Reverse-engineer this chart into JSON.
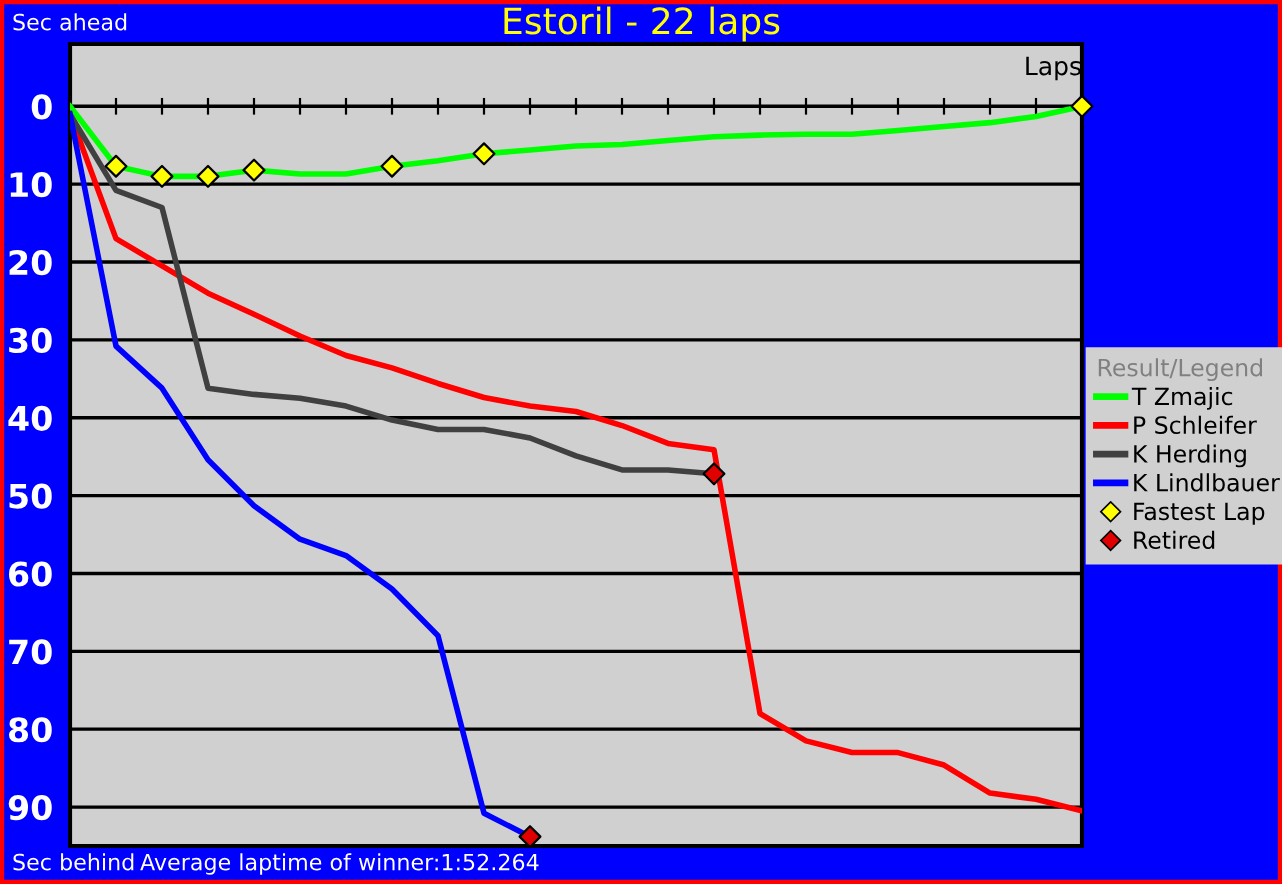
{
  "chart_data": {
    "type": "line",
    "title": "Estoril - 22 laps",
    "xlabel": "Laps",
    "legend_title": "Result/Legend",
    "annotations": [
      "Sec ahead",
      "Sec behind",
      "Average laptime of winner:1:52.264"
    ],
    "categories": [
      null,
      null,
      null,
      null,
      null,
      null,
      null,
      null,
      null,
      null,
      null,
      null,
      null,
      null,
      null,
      null,
      null,
      null,
      null,
      null,
      null,
      null,
      null
    ],
    "ylim": [
      95,
      -8
    ],
    "yticks": [
      0,
      10,
      20,
      30,
      40,
      50,
      60,
      70,
      80,
      90
    ],
    "grid": "y",
    "legend": "right",
    "marker": "none",
    "line_style": "solid",
    "series": [
      {
        "name": "T Zmajic",
        "color": "#00ff00",
        "values": [
          0,
          7.7,
          9,
          9,
          8.2,
          8.7,
          8.7,
          7.7,
          7,
          6.1,
          5.6,
          5.1,
          4.9,
          4.4,
          3.9,
          3.7,
          3.6,
          3.6,
          3.1,
          2.6,
          2.1,
          1.3,
          0
        ]
      },
      {
        "name": "P Schleifer",
        "color": "#ff0000",
        "values": [
          1,
          17,
          20.5,
          24,
          26.7,
          29.5,
          32,
          33.6,
          35.6,
          37.4,
          38.5,
          39.2,
          41,
          43.3,
          44.1,
          78,
          81.5,
          83,
          83,
          84.6,
          88.2,
          89,
          90.5
        ]
      },
      {
        "name": "K Herding",
        "color": "#404040",
        "values": [
          1,
          10.8,
          13,
          36.2,
          37,
          37.5,
          38.5,
          40.3,
          41.5,
          41.5,
          42.6,
          44.9,
          46.7,
          46.7,
          47.2,
          null,
          null,
          null,
          null,
          null,
          null,
          null,
          null
        ]
      },
      {
        "name": "K Lindlbauer",
        "color": "#0000ff",
        "values": [
          1,
          30.8,
          36.2,
          45.4,
          51.3,
          55.6,
          57.7,
          62,
          68,
          90.8,
          93.8,
          null,
          null,
          null,
          null,
          null,
          null,
          null,
          null,
          null,
          null,
          null,
          null
        ]
      },
      {
        "name": "Fastest Lap",
        "type": "scatter",
        "marker": "diamond",
        "color": "#ffff00",
        "values": [
          null,
          7.7,
          9,
          9,
          8.2,
          null,
          null,
          7.7,
          null,
          6.1,
          null,
          null,
          null,
          null,
          null,
          null,
          null,
          null,
          null,
          null,
          null,
          null,
          0
        ]
      },
      {
        "name": "Retired",
        "type": "scatter",
        "marker": "diamond",
        "color": "#e00000",
        "values": [
          null,
          null,
          null,
          null,
          null,
          null,
          null,
          null,
          null,
          null,
          93.8,
          null,
          null,
          null,
          47.2,
          null,
          null,
          null,
          null,
          null,
          null,
          null,
          null
        ]
      }
    ]
  }
}
